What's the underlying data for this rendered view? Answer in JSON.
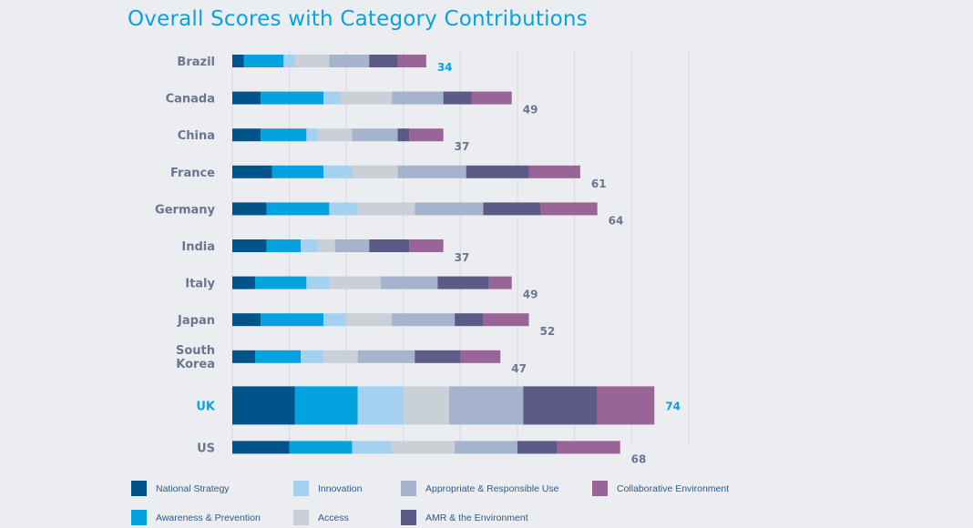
{
  "chart_data": {
    "type": "bar",
    "orientation": "horizontal",
    "stacked": true,
    "title": "Overall Scores with Category Contributions",
    "xlabel": "",
    "ylabel": "",
    "xlim": [
      0,
      80
    ],
    "grid": true,
    "legend_position": "bottom",
    "highlighted_categories": [
      "Brazil",
      "UK"
    ],
    "categories": [
      "Brazil",
      "Canada",
      "China",
      "France",
      "Germany",
      "India",
      "Italy",
      "Japan",
      "South Korea",
      "UK",
      "US"
    ],
    "totals": [
      34,
      49,
      37,
      61,
      64,
      37,
      49,
      52,
      47,
      74,
      68
    ],
    "series": [
      {
        "name": "National Strategy",
        "color": "#00548a",
        "values": [
          2,
          5,
          5,
          7,
          6,
          6,
          4,
          5,
          4,
          11,
          10
        ]
      },
      {
        "name": "Awareness & Prevention",
        "color": "#04a3e0",
        "values": [
          7,
          11,
          8,
          9,
          11,
          6,
          9,
          11,
          8,
          11,
          11
        ]
      },
      {
        "name": "Innovation",
        "color": "#a3d1ef",
        "values": [
          2,
          3,
          2,
          5,
          5,
          3,
          4,
          4,
          4,
          8,
          7
        ]
      },
      {
        "name": "Access",
        "color": "#cad0d8",
        "values": [
          6,
          9,
          6,
          8,
          10,
          3,
          9,
          8,
          6,
          8,
          11
        ]
      },
      {
        "name": "Appropriate & Responsible Use",
        "color": "#a6b3cd",
        "values": [
          7,
          9,
          8,
          12,
          12,
          6,
          10,
          11,
          10,
          13,
          11
        ]
      },
      {
        "name": "AMR & the Environment",
        "color": "#5c5a87",
        "values": [
          5,
          5,
          2,
          11,
          10,
          7,
          9,
          5,
          8,
          13,
          7
        ]
      },
      {
        "name": "Collaborative Environment",
        "color": "#996496",
        "values": [
          5,
          7,
          6,
          9,
          10,
          6,
          4,
          8,
          7,
          10,
          11
        ]
      }
    ]
  },
  "legend": {
    "items": [
      {
        "label": "National Strategy",
        "color": "#00548a"
      },
      {
        "label": "Awareness & Prevention",
        "color": "#04a3e0"
      },
      {
        "label": "Innovation",
        "color": "#a3d1ef"
      },
      {
        "label": "Access",
        "color": "#cad0d8"
      },
      {
        "label": "Appropriate & Responsible Use",
        "color": "#a6b3cd"
      },
      {
        "label": "AMR & the Environment",
        "color": "#5c5a87"
      },
      {
        "label": "Collaborative Environment",
        "color": "#996496"
      }
    ]
  },
  "colors": {
    "title": "#0aa2dd",
    "highlight": "#0aa2dd",
    "label": "#6b7591",
    "background": "#ebedf0"
  }
}
